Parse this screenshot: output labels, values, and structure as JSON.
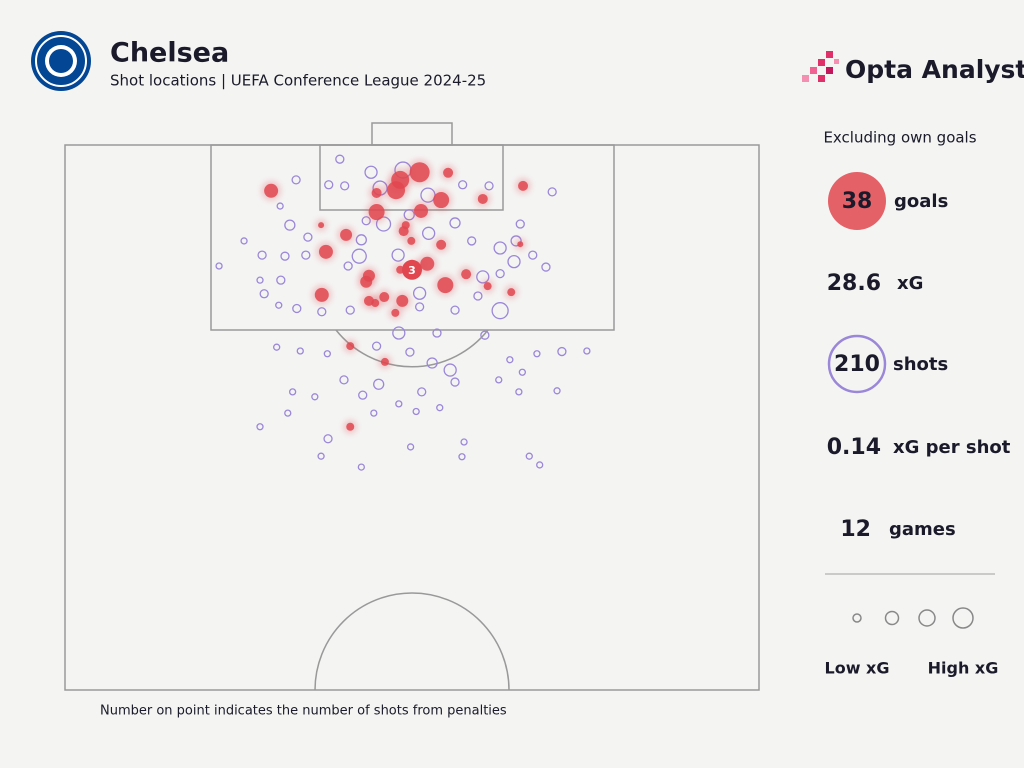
{
  "chart_data": {
    "type": "scatter",
    "title": "Chelsea",
    "subtitle": "Shot locations | UEFA Conference League 2024-25",
    "xlim": [
      0,
      100
    ],
    "ylim": [
      0,
      100
    ],
    "series": [
      {
        "name": "goals",
        "color": "#e0474f",
        "x": [
          29.7,
          51.1,
          48.3,
          47.7,
          54.2,
          44.9,
          51.3,
          44.9,
          55.2,
          60.2,
          66.0,
          40.5,
          37.6,
          48.8,
          49.9,
          54.2,
          52.2,
          43.8,
          43.4,
          37.0,
          54.8,
          57.8,
          46.0,
          48.6,
          43.8,
          44.7,
          47.6,
          48.3,
          60.9,
          64.3,
          65.6,
          49.1,
          36.9,
          41.1,
          46.1,
          41.1,
          50.6
        ],
        "values": [
          8.4,
          5.0,
          6.4,
          8.3,
          10.1,
          12.3,
          12.1,
          8.8,
          5.1,
          9.9,
          7.5,
          16.5,
          19.6,
          15.8,
          17.6,
          18.3,
          21.8,
          24.0,
          25.1,
          27.5,
          25.7,
          23.7,
          27.9,
          28.6,
          28.6,
          29.0,
          30.8,
          22.9,
          25.9,
          27.0,
          18.2,
          14.7,
          14.7,
          36.9,
          39.8,
          51.7,
          22.4
        ],
        "sizes": [
          0.25,
          0.64,
          0.49,
          0.49,
          0.36,
          0.36,
          0.25,
          0.09,
          0.09,
          0.09,
          0.09,
          0.16,
          0.25,
          0.09,
          0.04,
          0.09,
          0.25,
          0.16,
          0.16,
          0.25,
          0.36,
          0.09,
          0.09,
          0.16,
          0.09,
          0.04,
          0.04,
          0.04,
          0.04,
          0.04,
          0.01,
          0.04,
          0.01,
          0.04,
          0.04,
          0.04,
          0.04
        ]
      },
      {
        "name": "shots",
        "color": "#9b87d8",
        "x": [
          39.6,
          38.0,
          40.3,
          44.1,
          48.7,
          45.4,
          52.3,
          57.3,
          61.1,
          70.2,
          33.3,
          31.0,
          32.4,
          35.0,
          25.8,
          28.4,
          31.7,
          34.7,
          22.2,
          28.1,
          28.7,
          31.1,
          30.8,
          33.4,
          37.0,
          42.4,
          40.8,
          42.7,
          45.9,
          43.4,
          49.6,
          52.4,
          56.2,
          58.6,
          62.7,
          65.0,
          65.6,
          64.7,
          60.2,
          62.7,
          69.3,
          67.4,
          62.7,
          59.5,
          56.2,
          51.1,
          51.1,
          48.0,
          41.1,
          48.1,
          53.6,
          60.5,
          49.7,
          44.9,
          52.9,
          55.5,
          30.5,
          33.9,
          37.8,
          45.2,
          40.2,
          32.8,
          32.1,
          36.0,
          42.9,
          48.1,
          51.4,
          50.6,
          54.0,
          56.2,
          62.5,
          64.1,
          65.9,
          68.0,
          71.6,
          75.2,
          65.4,
          70.9,
          28.1,
          37.9,
          36.9,
          49.8,
          57.5,
          57.2,
          66.9,
          68.4,
          42.7,
          44.5
        ],
        "values": [
          2.6,
          7.3,
          7.5,
          5.0,
          4.6,
          7.9,
          9.2,
          7.3,
          7.5,
          8.6,
          6.4,
          11.2,
          14.7,
          16.9,
          17.6,
          20.2,
          20.4,
          20.2,
          22.2,
          24.8,
          27.3,
          24.8,
          29.4,
          30.0,
          30.6,
          20.4,
          22.2,
          17.4,
          14.5,
          13.9,
          12.8,
          16.2,
          14.3,
          17.6,
          18.9,
          17.6,
          14.5,
          21.4,
          24.2,
          23.6,
          22.4,
          20.2,
          30.4,
          27.7,
          30.3,
          29.7,
          27.2,
          20.2,
          30.3,
          34.5,
          34.5,
          34.9,
          38.0,
          36.9,
          40.0,
          41.3,
          37.1,
          37.8,
          38.3,
          43.9,
          43.1,
          45.3,
          49.2,
          46.2,
          45.9,
          47.5,
          45.3,
          48.9,
          48.2,
          43.5,
          43.1,
          39.4,
          41.7,
          38.3,
          37.9,
          37.8,
          45.3,
          45.1,
          51.7,
          53.9,
          57.1,
          55.4,
          54.5,
          57.2,
          57.1,
          58.7,
          59.1,
          49.2
        ],
        "sizes": [
          0.04,
          0.04,
          0.04,
          0.16,
          0.36,
          0.25,
          0.25,
          0.04,
          0.04,
          0.04,
          0.04,
          0.01,
          0.09,
          0.04,
          0.01,
          0.04,
          0.04,
          0.04,
          0.01,
          0.01,
          0.04,
          0.04,
          0.01,
          0.04,
          0.04,
          0.25,
          0.04,
          0.09,
          0.25,
          0.04,
          0.09,
          0.16,
          0.09,
          0.04,
          0.16,
          0.09,
          0.04,
          0.16,
          0.16,
          0.04,
          0.04,
          0.04,
          0.36,
          0.04,
          0.04,
          0.04,
          0.16,
          0.16,
          0.04,
          0.16,
          0.04,
          0.04,
          0.04,
          0.04,
          0.09,
          0.16,
          0.01,
          0.01,
          0.01,
          0.09,
          0.04,
          0.01,
          0.01,
          0.01,
          0.04,
          0.01,
          0.04,
          0.01,
          0.01,
          0.04,
          0.01,
          0.01,
          0.01,
          0.01,
          0.04,
          0.01,
          0.01,
          0.01,
          0.01,
          0.04,
          0.01,
          0.01,
          0.01,
          0.01,
          0.01,
          0.01,
          0.01,
          0.01
        ]
      }
    ],
    "penalty": {
      "x": 50.0,
      "y": 22.9,
      "count": 3
    },
    "footnote": "Number on point indicates the number of shots from penalties"
  },
  "brand": "Opta Analyst",
  "panel": {
    "note": "Excluding own goals",
    "goals": 38,
    "xg": 28.6,
    "xg_label": "xG",
    "shots": 210,
    "xg_per_shot": 0.14,
    "xg_per_shot_label": "xG per shot",
    "games": 12,
    "games_label": "games",
    "legend_low": "Low xG",
    "legend_high": "High xG"
  }
}
